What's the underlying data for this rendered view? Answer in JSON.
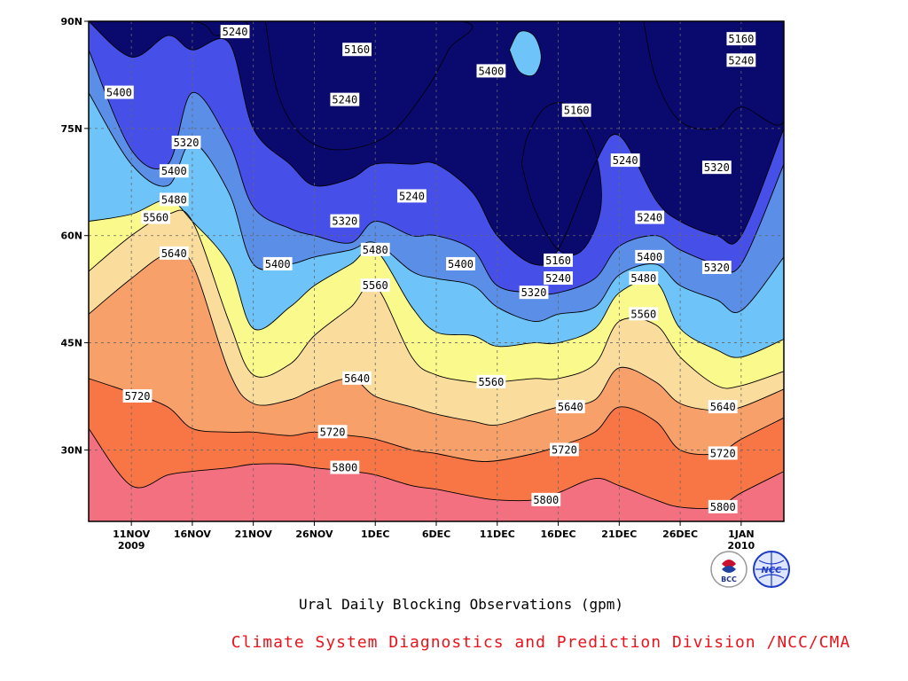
{
  "chart_data": {
    "type": "heatmap",
    "title": "Ural Daily Blocking Observations (gpm)",
    "x_ticks": [
      {
        "day": 0,
        "label": "11NOV",
        "sub": "2009"
      },
      {
        "day": 5,
        "label": "16NOV"
      },
      {
        "day": 10,
        "label": "21NOV"
      },
      {
        "day": 15,
        "label": "26NOV"
      },
      {
        "day": 20,
        "label": "1DEC"
      },
      {
        "day": 25,
        "label": "6DEC"
      },
      {
        "day": 30,
        "label": "11DEC"
      },
      {
        "day": 35,
        "label": "16DEC"
      },
      {
        "day": 40,
        "label": "21DEC"
      },
      {
        "day": 45,
        "label": "26DEC"
      },
      {
        "day": 50,
        "label": "1JAN",
        "sub": "2010"
      }
    ],
    "xlim": [
      -3.5,
      53.5
    ],
    "y_ticks": [
      {
        "value": 30,
        "label": "30N"
      },
      {
        "value": 45,
        "label": "45N"
      },
      {
        "value": 60,
        "label": "60N"
      },
      {
        "value": 75,
        "label": "75N"
      },
      {
        "value": 90,
        "label": "90N"
      }
    ],
    "ylim": [
      20,
      90
    ],
    "grid": true,
    "levels": [
      5160,
      5240,
      5320,
      5400,
      5480,
      5560,
      5640,
      5720,
      5800
    ],
    "fill_colors": [
      "#0a0a6e",
      "#1a20d8",
      "#4650e8",
      "#5b8ee6",
      "#6ec4f8",
      "#fafa8c",
      "#fadc9c",
      "#f8a06a",
      "#f87646",
      "#f27080"
    ],
    "contour_lat_by_day": {
      "days": [
        -3.5,
        0,
        3,
        5,
        8,
        10,
        13,
        15,
        18,
        20,
        23,
        25,
        28,
        30,
        33,
        35,
        38,
        40,
        43,
        45,
        48,
        50,
        53.5
      ],
      "5800": [
        33,
        25,
        26.5,
        27,
        27.5,
        28,
        28,
        27.5,
        27,
        26.5,
        25,
        24.5,
        23.5,
        23,
        23,
        24,
        26,
        25,
        23,
        22,
        22,
        24,
        27
      ],
      "5720": [
        40,
        38,
        36,
        33,
        32.5,
        32.5,
        32,
        32.5,
        32,
        31.5,
        30,
        29.5,
        28.5,
        28.5,
        29.5,
        30.5,
        32.5,
        36,
        34,
        30,
        29.5,
        31.5,
        34.5
      ],
      "5640": [
        49,
        54,
        57.5,
        56,
        41,
        36.5,
        37,
        38.5,
        40,
        37.5,
        36,
        35,
        34,
        33.5,
        35,
        36,
        37,
        41.5,
        39.5,
        36.5,
        35.5,
        36,
        38.5
      ],
      "5560": [
        55,
        60,
        63,
        62,
        48,
        40.5,
        42,
        46,
        50,
        53,
        43,
        40.5,
        39.5,
        39.5,
        40,
        40,
        42,
        48,
        47.5,
        43,
        39,
        39,
        41
      ],
      "5480": [
        62,
        63,
        65,
        62,
        56,
        47,
        50,
        53,
        56,
        58,
        50,
        46.5,
        46,
        44.5,
        45,
        45,
        47,
        52,
        53.5,
        47,
        44,
        43,
        45.5
      ],
      "5400": [
        80,
        70,
        67,
        73,
        66,
        56,
        56,
        57,
        58,
        59,
        55,
        54,
        53,
        50,
        48,
        49,
        50,
        54.5,
        56,
        53,
        51,
        49.5,
        57
      ],
      "5320": [
        86,
        72,
        70,
        80,
        73,
        64,
        61,
        60,
        59,
        62,
        60,
        60,
        58,
        53,
        52,
        52,
        54,
        58.5,
        60,
        58,
        56,
        56,
        70
      ],
      "5240": [
        90,
        85,
        88,
        86,
        87,
        75,
        70,
        67,
        68,
        70,
        70,
        70,
        66,
        60,
        56,
        58,
        70,
        74,
        65,
        62,
        60,
        60,
        75
      ]
    },
    "labels": [
      {
        "text": "5800",
        "day": 17.5,
        "lat": 27.5
      },
      {
        "text": "5800",
        "day": 34,
        "lat": 23
      },
      {
        "text": "5800",
        "day": 48.5,
        "lat": 22
      },
      {
        "text": "5720",
        "day": 0.5,
        "lat": 37.5
      },
      {
        "text": "5720",
        "day": 16.5,
        "lat": 32.5
      },
      {
        "text": "5720",
        "day": 35.5,
        "lat": 30
      },
      {
        "text": "5720",
        "day": 48.5,
        "lat": 29.5
      },
      {
        "text": "5640",
        "day": 3.5,
        "lat": 57.5
      },
      {
        "text": "5640",
        "day": 18.5,
        "lat": 40
      },
      {
        "text": "5640",
        "day": 36,
        "lat": 36
      },
      {
        "text": "5640",
        "day": 48.5,
        "lat": 36
      },
      {
        "text": "5560",
        "day": 2,
        "lat": 62.5
      },
      {
        "text": "5560",
        "day": 20,
        "lat": 53
      },
      {
        "text": "5560",
        "day": 29.5,
        "lat": 39.5
      },
      {
        "text": "5560",
        "day": 42,
        "lat": 49
      },
      {
        "text": "5480",
        "day": 3.5,
        "lat": 65
      },
      {
        "text": "5480",
        "day": 20,
        "lat": 58
      },
      {
        "text": "5480",
        "day": 42,
        "lat": 54
      },
      {
        "text": "5400",
        "day": -1,
        "lat": 80
      },
      {
        "text": "5400",
        "day": 3.5,
        "lat": 69
      },
      {
        "text": "5400",
        "day": 12,
        "lat": 56
      },
      {
        "text": "5400",
        "day": 27,
        "lat": 56
      },
      {
        "text": "5400",
        "day": 29.5,
        "lat": 83
      },
      {
        "text": "5400",
        "day": 42.5,
        "lat": 57
      },
      {
        "text": "5320",
        "day": 4.5,
        "lat": 73
      },
      {
        "text": "5320",
        "day": 17.5,
        "lat": 62
      },
      {
        "text": "5320",
        "day": 33,
        "lat": 52
      },
      {
        "text": "5320",
        "day": 48,
        "lat": 69.5
      },
      {
        "text": "5320",
        "day": 48,
        "lat": 55.5
      },
      {
        "text": "5240",
        "day": 8.5,
        "lat": 88.5
      },
      {
        "text": "5240",
        "day": 17.5,
        "lat": 79
      },
      {
        "text": "5240",
        "day": 23,
        "lat": 65.5
      },
      {
        "text": "5240",
        "day": 35,
        "lat": 54
      },
      {
        "text": "5240",
        "day": 40.5,
        "lat": 70.5
      },
      {
        "text": "5240",
        "day": 42.5,
        "lat": 62.5
      },
      {
        "text": "5240",
        "day": 50,
        "lat": 84.5
      },
      {
        "text": "5160",
        "day": 18.5,
        "lat": 86
      },
      {
        "text": "5160",
        "day": 35,
        "lat": 56.5
      },
      {
        "text": "5160",
        "day": 36.5,
        "lat": 77.5
      },
      {
        "text": "5160",
        "day": 50,
        "lat": 87.5
      }
    ]
  },
  "caption": {
    "title": "Ural Daily Blocking Observations (gpm)",
    "credit": "Climate System Diagnostics and Prediction Division /NCC/CMA"
  },
  "logos": [
    {
      "name": "bcc-logo",
      "text": "BCC",
      "color": "#c8102e"
    },
    {
      "name": "ncc-logo",
      "text": "NCC",
      "color": "#1e3cc8"
    }
  ]
}
